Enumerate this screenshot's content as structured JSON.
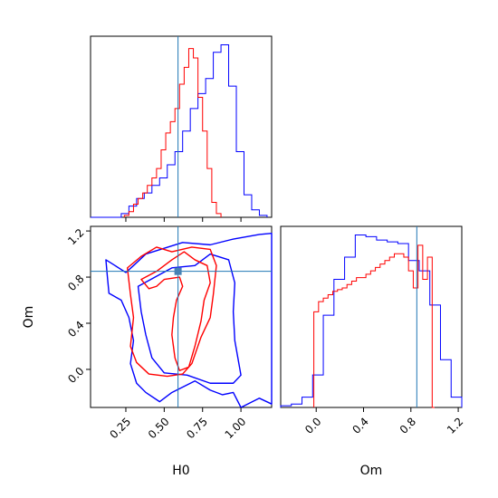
{
  "chart_data": {
    "type": "corner",
    "parameters": [
      "H0",
      "Om"
    ],
    "truths": {
      "H0": 0.59,
      "Om": 0.85
    },
    "colors": {
      "series_a": "#0000ff",
      "series_b": "#ff0000",
      "truth": "#1f77b4"
    },
    "panels": [
      {
        "id": "hist_H0",
        "type": "histogram",
        "x_param": "H0",
        "xlim": [
          0.02,
          1.2
        ],
        "x_ticks": [
          0.25,
          0.5,
          0.75,
          1.0
        ],
        "tick_labels_shown": false,
        "series": [
          {
            "color": "#0000ff",
            "bin_edges": [
              0.02,
              0.07,
              0.12,
              0.17,
              0.22,
              0.27,
              0.32,
              0.37,
              0.42,
              0.47,
              0.52,
              0.57,
              0.62,
              0.67,
              0.72,
              0.77,
              0.82,
              0.87,
              0.92,
              0.97,
              1.02,
              1.07,
              1.12,
              1.17
            ],
            "heights": [
              0,
              0,
              0,
              0,
              2,
              6,
              10,
              13,
              17,
              21,
              28,
              35,
              46,
              58,
              66,
              74,
              88,
              92,
              70,
              35,
              12,
              4,
              1
            ]
          },
          {
            "color": "#ff0000",
            "bin_edges": [
              0.24,
              0.27,
              0.3,
              0.33,
              0.36,
              0.39,
              0.42,
              0.45,
              0.48,
              0.51,
              0.54,
              0.57,
              0.6,
              0.63,
              0.66,
              0.69,
              0.72,
              0.75,
              0.78,
              0.81,
              0.84,
              0.87
            ],
            "heights": [
              1,
              3,
              7,
              10,
              13,
              17,
              21,
              26,
              36,
              45,
              51,
              58,
              71,
              80,
              90,
              85,
              64,
              46,
              26,
              8,
              2
            ]
          }
        ]
      },
      {
        "id": "hist_Om",
        "type": "histogram",
        "x_param": "Om",
        "xlim": [
          -0.3,
          1.23
        ],
        "x_ticks": [
          0.0,
          0.4,
          0.8,
          1.2
        ],
        "x_tick_labels": [
          "0.0",
          "0.4",
          "0.8",
          "1.2"
        ],
        "xlabel": "Om",
        "series": [
          {
            "color": "#0000ff",
            "bin_edges": [
              -0.3,
              -0.21,
              -0.12,
              -0.03,
              0.06,
              0.15,
              0.24,
              0.33,
              0.42,
              0.51,
              0.6,
              0.69,
              0.78,
              0.87,
              0.96,
              1.05,
              1.14,
              1.23
            ],
            "heights": [
              1,
              2,
              6,
              19,
              54,
              75,
              88,
              101,
              100,
              98,
              97,
              96,
              86,
              80,
              60,
              28,
              6
            ]
          },
          {
            "color": "#ff0000",
            "bin_edges": [
              -0.02,
              0.02,
              0.06,
              0.1,
              0.14,
              0.18,
              0.22,
              0.26,
              0.3,
              0.34,
              0.38,
              0.42,
              0.46,
              0.5,
              0.54,
              0.58,
              0.62,
              0.66,
              0.7,
              0.74,
              0.78,
              0.82,
              0.86,
              0.9,
              0.94,
              0.98,
              1.0
            ],
            "heights": [
              56,
              62,
              64,
              66,
              68,
              69,
              70,
              72,
              74,
              76,
              76,
              78,
              80,
              82,
              84,
              86,
              88,
              90,
              90,
              88,
              80,
              70,
              95,
              75,
              88,
              0
            ]
          }
        ]
      },
      {
        "id": "contour_H0_Om",
        "type": "contour",
        "x_param": "H0",
        "y_param": "Om",
        "xlim": [
          0.02,
          1.2
        ],
        "ylim": [
          -0.33,
          1.24
        ],
        "x_ticks": [
          0.25,
          0.5,
          0.75,
          1.0
        ],
        "x_tick_labels": [
          "0.25",
          "0.50",
          "0.75",
          "1.00"
        ],
        "y_ticks": [
          0.0,
          0.4,
          0.8,
          1.2
        ],
        "y_tick_labels": [
          "0.0",
          "0.4",
          "0.8",
          "1.2"
        ],
        "xlabel": "H0",
        "ylabel": "Om",
        "contours": [
          {
            "color": "#0000ff",
            "points": [
              [
                0.12,
                0.95
              ],
              [
                0.18,
                0.9
              ],
              [
                0.25,
                0.84
              ],
              [
                0.3,
                0.9
              ],
              [
                0.38,
                1.0
              ],
              [
                0.5,
                1.05
              ],
              [
                0.62,
                1.1
              ],
              [
                0.8,
                1.08
              ],
              [
                0.95,
                1.13
              ],
              [
                1.12,
                1.17
              ],
              [
                1.2,
                1.18
              ],
              [
                1.2,
                -0.3
              ],
              [
                1.12,
                -0.25
              ],
              [
                1.0,
                -0.33
              ],
              [
                0.95,
                -0.2
              ],
              [
                0.88,
                -0.22
              ],
              [
                0.8,
                -0.18
              ],
              [
                0.7,
                -0.1
              ],
              [
                0.55,
                -0.2
              ],
              [
                0.47,
                -0.28
              ],
              [
                0.38,
                -0.2
              ],
              [
                0.32,
                -0.12
              ],
              [
                0.28,
                0.05
              ],
              [
                0.3,
                0.25
              ],
              [
                0.27,
                0.45
              ],
              [
                0.22,
                0.6
              ],
              [
                0.14,
                0.66
              ],
              [
                0.13,
                0.8
              ],
              [
                0.12,
                0.95
              ]
            ]
          },
          {
            "color": "#0000ff",
            "points": [
              [
                0.33,
                0.72
              ],
              [
                0.55,
                0.88
              ],
              [
                0.7,
                0.9
              ],
              [
                0.8,
                1.0
              ],
              [
                0.92,
                0.95
              ],
              [
                0.96,
                0.75
              ],
              [
                0.95,
                0.5
              ],
              [
                0.96,
                0.25
              ],
              [
                0.98,
                0.1
              ],
              [
                1.0,
                -0.05
              ],
              [
                0.95,
                -0.12
              ],
              [
                0.8,
                -0.12
              ],
              [
                0.65,
                -0.05
              ],
              [
                0.5,
                -0.03
              ],
              [
                0.42,
                0.1
              ],
              [
                0.38,
                0.3
              ],
              [
                0.35,
                0.5
              ],
              [
                0.33,
                0.72
              ]
            ]
          },
          {
            "color": "#ff0000",
            "points": [
              [
                0.26,
                0.88
              ],
              [
                0.35,
                0.98
              ],
              [
                0.45,
                1.06
              ],
              [
                0.55,
                1.02
              ],
              [
                0.68,
                1.06
              ],
              [
                0.8,
                1.04
              ],
              [
                0.84,
                0.9
              ],
              [
                0.82,
                0.65
              ],
              [
                0.8,
                0.45
              ],
              [
                0.74,
                0.28
              ],
              [
                0.68,
                0.05
              ],
              [
                0.62,
                -0.04
              ],
              [
                0.52,
                -0.06
              ],
              [
                0.4,
                -0.04
              ],
              [
                0.32,
                0.06
              ],
              [
                0.28,
                0.2
              ],
              [
                0.3,
                0.45
              ],
              [
                0.28,
                0.65
              ],
              [
                0.26,
                0.88
              ]
            ]
          },
          {
            "color": "#ff0000",
            "points": [
              [
                0.35,
                0.78
              ],
              [
                0.45,
                0.85
              ],
              [
                0.55,
                0.95
              ],
              [
                0.63,
                1.02
              ],
              [
                0.7,
                0.95
              ],
              [
                0.78,
                0.9
              ],
              [
                0.8,
                0.75
              ],
              [
                0.76,
                0.6
              ],
              [
                0.74,
                0.42
              ],
              [
                0.7,
                0.2
              ],
              [
                0.66,
                0.02
              ],
              [
                0.6,
                -0.01
              ],
              [
                0.57,
                0.1
              ],
              [
                0.55,
                0.3
              ],
              [
                0.56,
                0.45
              ],
              [
                0.58,
                0.6
              ],
              [
                0.62,
                0.72
              ],
              [
                0.6,
                0.8
              ],
              [
                0.5,
                0.78
              ],
              [
                0.45,
                0.72
              ],
              [
                0.4,
                0.7
              ],
              [
                0.35,
                0.78
              ]
            ]
          }
        ]
      }
    ]
  }
}
